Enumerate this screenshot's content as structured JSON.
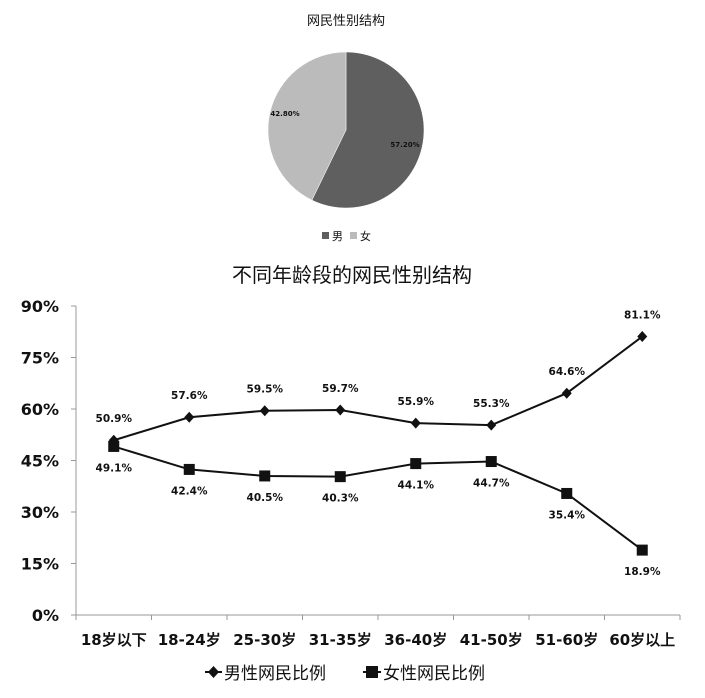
{
  "chart_data": [
    {
      "type": "pie",
      "title": "网民性别结构",
      "categories": [
        "男",
        "女"
      ],
      "values": [
        57.2,
        42.8
      ],
      "labels": [
        "57.20%",
        "42.80%"
      ],
      "colors": [
        "#5f5f5f",
        "#bbbbbb"
      ],
      "legend": "bottom"
    },
    {
      "type": "line",
      "title": "不同年龄段的网民性别结构",
      "categories": [
        "18岁以下",
        "18-24岁",
        "25-30岁",
        "31-35岁",
        "36-40岁",
        "41-50岁",
        "51-60岁",
        "60岁以上"
      ],
      "ylim": [
        0,
        90
      ],
      "yticks": [
        0,
        15,
        30,
        45,
        60,
        75,
        90
      ],
      "ytick_labels": [
        "0%",
        "15%",
        "30%",
        "45%",
        "60%",
        "75%",
        "90%"
      ],
      "grid": false,
      "legend": "bottom",
      "series": [
        {
          "name": "男性网民比例",
          "marker": "diamond",
          "color": "#111111",
          "values": [
            50.9,
            57.6,
            59.5,
            59.7,
            55.9,
            55.3,
            64.6,
            81.1
          ],
          "labels": [
            "50.9%",
            "57.6%",
            "59.5%",
            "59.7%",
            "55.9%",
            "55.3%",
            "64.6%",
            "81.1%"
          ]
        },
        {
          "name": "女性网民比例",
          "marker": "square",
          "color": "#111111",
          "values": [
            49.1,
            42.4,
            40.5,
            40.3,
            44.1,
            44.7,
            35.4,
            18.9
          ],
          "labels": [
            "49.1%",
            "42.4%",
            "40.5%",
            "40.3%",
            "44.1%",
            "44.7%",
            "35.4%",
            "18.9%"
          ]
        }
      ]
    }
  ]
}
